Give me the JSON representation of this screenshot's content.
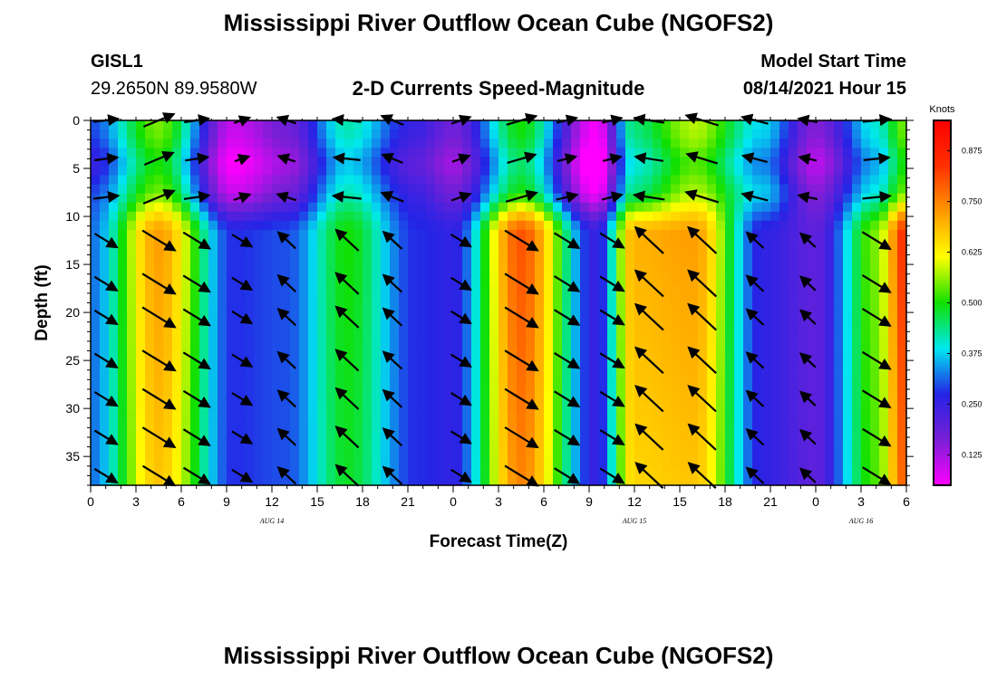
{
  "header": {
    "title": "Mississippi River Outflow Ocean Cube (NGOFS2)",
    "station": "GISL1",
    "coordinates": "29.2650N  89.9580W",
    "subtitle": "2-D Currents Speed-Magnitude",
    "model_start_label": "Model Start Time",
    "model_start_value": "08/14/2021 Hour 15",
    "footer_title": "Mississippi River Outflow Ocean Cube (NGOFS2)"
  },
  "chart_data": {
    "type": "heatmap",
    "title": "2-D Currents Speed-Magnitude",
    "xlabel": "Forecast Time(Z)",
    "ylabel": "Depth (ft)",
    "x_range_hours": [
      0,
      54
    ],
    "y_range_ft": [
      0,
      38
    ],
    "y_inverted": true,
    "x_tick_labels": [
      "0",
      "3",
      "6",
      "9",
      "12",
      "15",
      "18",
      "21",
      "0",
      "3",
      "6",
      "9",
      "12",
      "15",
      "18",
      "21",
      "0",
      "3",
      "6"
    ],
    "y_tick_values": [
      0,
      5,
      10,
      15,
      20,
      25,
      30,
      35
    ],
    "date_labels": [
      {
        "label": "AUG  14",
        "hour": 12
      },
      {
        "label": "AUG  15",
        "hour": 36
      },
      {
        "label": "AUG  16",
        "hour": 51
      }
    ],
    "colorbar": {
      "units": "Knots",
      "range": [
        0.05,
        0.95
      ],
      "tick_values": [
        0.125,
        0.25,
        0.375,
        0.5,
        0.625,
        0.75,
        0.875
      ],
      "tick_labels": [
        "0.125",
        "0.250",
        "0.375",
        "0.500",
        "0.625",
        "0.750",
        "0.875"
      ],
      "colors": [
        "#ff00ff",
        "#7a1fd6",
        "#2424e6",
        "#00e8f0",
        "#10e000",
        "#ffff00",
        "#ff9900",
        "#ff3000",
        "#ff0000"
      ]
    },
    "speed_bands": [
      {
        "hour": 0,
        "upper_knots": 0.3,
        "deep_knots": 0.32
      },
      {
        "hour": 4.5,
        "upper_knots": 0.55,
        "deep_knots": 0.72
      },
      {
        "hour": 9.5,
        "upper_knots": 0.1,
        "deep_knots": 0.28
      },
      {
        "hour": 13,
        "upper_knots": 0.18,
        "deep_knots": 0.3
      },
      {
        "hour": 17,
        "upper_knots": 0.42,
        "deep_knots": 0.5
      },
      {
        "hour": 21.5,
        "upper_knots": 0.25,
        "deep_knots": 0.28
      },
      {
        "hour": 24,
        "upper_knots": 0.18,
        "deep_knots": 0.26
      },
      {
        "hour": 28.5,
        "upper_knots": 0.5,
        "deep_knots": 0.8
      },
      {
        "hour": 33.5,
        "upper_knots": 0.06,
        "deep_knots": 0.25
      },
      {
        "hour": 36,
        "upper_knots": 0.45,
        "deep_knots": 0.7
      },
      {
        "hour": 40,
        "upper_knots": 0.58,
        "deep_knots": 0.72
      },
      {
        "hour": 44.5,
        "upper_knots": 0.38,
        "deep_knots": 0.26
      },
      {
        "hour": 48,
        "upper_knots": 0.16,
        "deep_knots": 0.2
      },
      {
        "hour": 52,
        "upper_knots": 0.4,
        "deep_knots": 0.55
      },
      {
        "hour": 54,
        "upper_knots": 0.55,
        "deep_knots": 0.85
      }
    ],
    "vector_columns_hours": [
      1,
      4.5,
      7,
      10,
      13,
      17,
      20,
      24.5,
      28.5,
      31.5,
      34.5,
      37,
      40.5,
      44,
      47.5,
      52
    ],
    "vector_rows_ft": [
      0,
      4,
      8,
      12.5,
      17,
      20.5,
      25,
      29,
      33,
      37
    ]
  }
}
